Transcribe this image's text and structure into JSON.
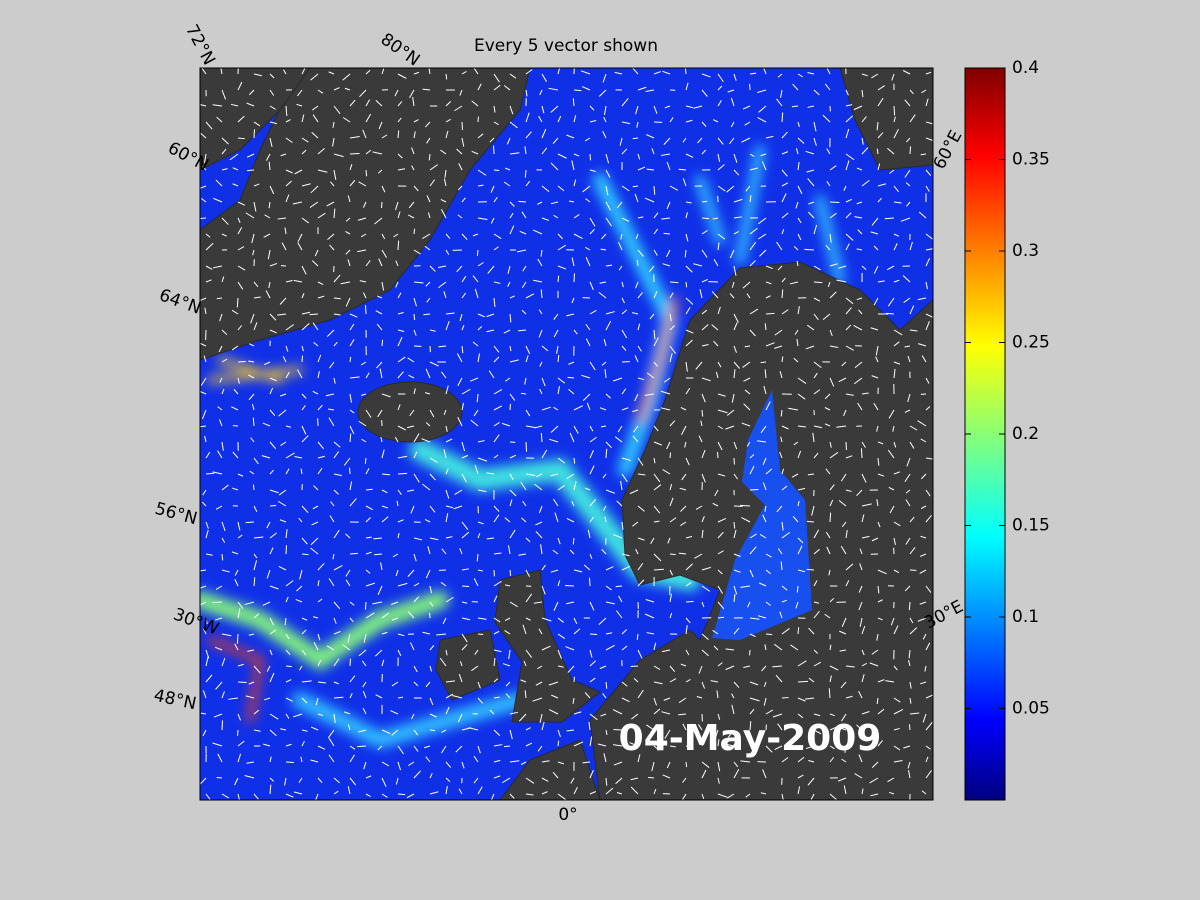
{
  "title": "Every 5 vector shown",
  "date_label": "04-May-2009",
  "graticule_labels": [
    "72°N",
    "80°N",
    "60°N",
    "64°N",
    "56°N",
    "48°N",
    "30°W",
    "0°",
    "30°E",
    "60°E"
  ],
  "colorbar": {
    "lim": [
      0,
      0.4
    ],
    "ticks": [
      0.05,
      0.1,
      0.15,
      0.2,
      0.25,
      0.3,
      0.35,
      0.4
    ]
  }
}
